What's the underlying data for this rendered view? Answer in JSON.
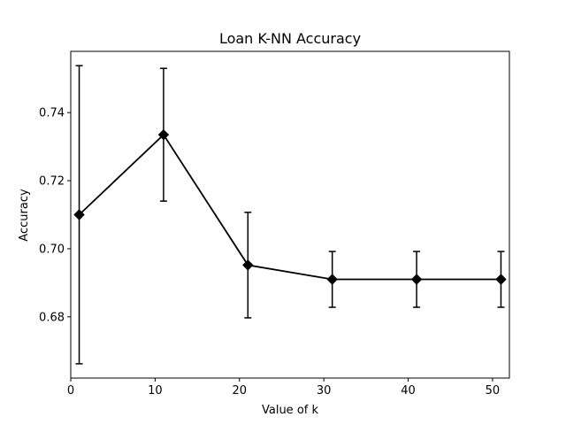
{
  "chart_data": {
    "type": "line",
    "title": "Loan K-NN Accuracy",
    "xlabel": "Value of k",
    "ylabel": "Accuracy",
    "xlim": [
      0,
      52
    ],
    "ylim": [
      0.662,
      0.758
    ],
    "x_ticks": [
      0,
      10,
      20,
      30,
      40,
      50
    ],
    "y_ticks": [
      0.68,
      0.7,
      0.72,
      0.74
    ],
    "x_tick_labels": [
      "0",
      "10",
      "20",
      "30",
      "40",
      "50"
    ],
    "y_tick_labels": [
      "0.68",
      "0.70",
      "0.72",
      "0.74"
    ],
    "grid": false,
    "series": [
      {
        "color": "#000000",
        "marker": "diamond",
        "x": [
          1,
          11,
          21,
          31,
          41,
          51
        ],
        "values": [
          0.71,
          0.7335,
          0.6952,
          0.691,
          0.691,
          0.691
        ],
        "error": [
          0.0438,
          0.0195,
          0.0155,
          0.0082,
          0.0082,
          0.0082
        ]
      }
    ]
  }
}
